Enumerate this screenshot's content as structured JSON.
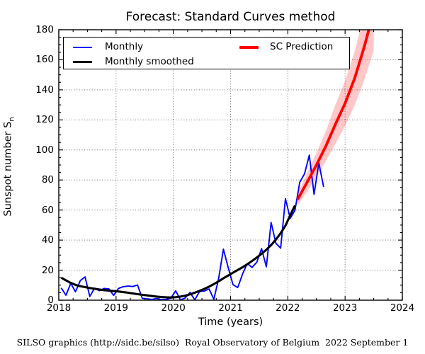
{
  "title": "Forecast: Standard Curves method",
  "footer": "SILSO graphics (http://sidc.be/silso)  Royal Observatory of Belgium  2022 September 1",
  "axes": {
    "xlabel": "Time (years)",
    "ylabel_main": "Sunspot number S",
    "ylabel_sub": "n"
  },
  "legend": {
    "monthly": "Monthly",
    "smoothed": "Monthly smoothed",
    "prediction": "SC Prediction"
  },
  "colors": {
    "monthly": "#0000ff",
    "smoothed": "#000000",
    "prediction": "#ff0000",
    "prediction_band": "rgba(255,0,0,0.22)",
    "grid": "#555555",
    "spine": "#000000"
  },
  "chart_data": {
    "type": "line",
    "title": "Forecast: Standard Curves method",
    "xlabel": "Time (years)",
    "ylabel": "Sunspot number Sn",
    "xlim": [
      2018,
      2024
    ],
    "ylim": [
      0,
      180
    ],
    "xticks": [
      2018,
      2019,
      2020,
      2021,
      2022,
      2023,
      2024
    ],
    "yticks": [
      0,
      20,
      40,
      60,
      80,
      100,
      120,
      140,
      160,
      180
    ],
    "grid": "dotted, both axes, at major ticks",
    "legend_position": "top inside, two columns",
    "series": [
      {
        "name": "Monthly",
        "type": "monthly_step_series",
        "x_start": 2018.0417,
        "x_step": 0.083333,
        "values": [
          8.2,
          3.3,
          11.2,
          5.6,
          13.0,
          15.5,
          2.5,
          8.0,
          6.3,
          7.8,
          7.5,
          3.2,
          7.8,
          9.0,
          9.4,
          9.1,
          10.1,
          1.2,
          0.9,
          0.5,
          1.1,
          0.4,
          0.5,
          1.5,
          6.2,
          0.2,
          1.5,
          5.2,
          0.2,
          5.8,
          6.1,
          7.5,
          0.6,
          14.4,
          34.0,
          21.8,
          10.4,
          8.4,
          17.3,
          24.5,
          21.8,
          25.3,
          34.3,
          22.2,
          51.7,
          37.9,
          34.6,
          67.6,
          54.4,
          59.9,
          78.5,
          84.1,
          96.5,
          70.5,
          91.4,
          75.4
        ]
      },
      {
        "name": "Monthly smoothed",
        "type": "monthly_step_series",
        "x_start": 2018.0417,
        "x_step": 0.083333,
        "values": [
          15.0,
          13.2,
          11.5,
          10.2,
          9.3,
          8.7,
          8.1,
          7.6,
          7.1,
          6.7,
          6.4,
          6.1,
          5.8,
          5.4,
          5.0,
          4.5,
          4.0,
          3.6,
          3.2,
          2.8,
          2.4,
          2.1,
          1.9,
          1.8,
          2.0,
          2.4,
          3.0,
          3.9,
          5.0,
          6.2,
          7.5,
          9.0,
          10.7,
          12.6,
          14.6,
          16.4,
          18.3,
          20.1,
          21.9,
          23.9,
          26.1,
          28.4,
          30.9,
          33.6,
          36.7,
          40.3,
          44.6,
          49.6,
          56.5,
          63.0
        ]
      },
      {
        "name": "SC Prediction",
        "type": "prediction_with_band",
        "x": [
          2022.17,
          2022.33,
          2022.5,
          2022.67,
          2022.83,
          2023.0,
          2023.17,
          2023.33,
          2023.5
        ],
        "values": [
          67,
          78,
          90,
          103,
          117,
          131,
          148,
          168,
          192
        ],
        "band_lower": [
          63,
          72,
          82,
          93,
          104,
          116,
          130,
          146,
          166
        ],
        "band_upper": [
          71,
          84,
          98,
          113,
          130,
          146,
          166,
          190,
          218
        ]
      }
    ]
  }
}
